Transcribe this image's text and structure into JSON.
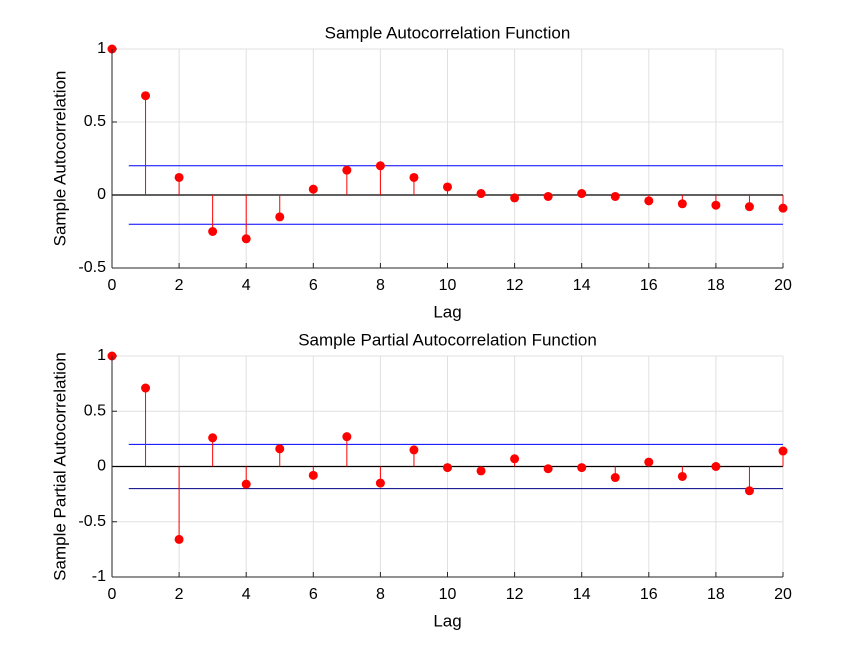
{
  "chart_data": [
    {
      "type": "stem",
      "title": "Sample Autocorrelation Function",
      "xlabel": "Lag",
      "ylabel": "Sample Autocorrelation",
      "x": [
        0,
        1,
        2,
        3,
        4,
        5,
        6,
        7,
        8,
        9,
        10,
        11,
        12,
        13,
        14,
        15,
        16,
        17,
        18,
        19,
        20
      ],
      "values": [
        1,
        0.68,
        0.12,
        -0.25,
        -0.3,
        -0.15,
        0.04,
        0.17,
        0.2,
        0.12,
        0.055,
        0.01,
        -0.02,
        -0.01,
        0.01,
        -0.01,
        -0.04,
        -0.06,
        -0.07,
        -0.08,
        -0.09
      ],
      "color": "#ff0000",
      "bounds": [
        0.2,
        -0.2
      ],
      "bound_colors": [
        "#0000ff",
        "#0000ff"
      ],
      "bounds_x": [
        0.5,
        20
      ],
      "xlim": [
        0,
        20
      ],
      "xticks": [
        0,
        2,
        4,
        6,
        8,
        10,
        12,
        14,
        16,
        18,
        20
      ],
      "ylim": [
        -0.5,
        1
      ],
      "yticks": [
        -0.5,
        0,
        0.5,
        1
      ],
      "grid": true
    },
    {
      "type": "stem",
      "title": "Sample Partial Autocorrelation Function",
      "xlabel": "Lag",
      "ylabel": "Sample Partial Autocorrelation",
      "x": [
        0,
        1,
        2,
        3,
        4,
        5,
        6,
        7,
        8,
        9,
        10,
        11,
        12,
        13,
        14,
        15,
        16,
        17,
        18,
        19,
        20
      ],
      "values": [
        1,
        0.71,
        -0.66,
        0.26,
        -0.16,
        0.16,
        -0.08,
        0.27,
        -0.15,
        0.15,
        -0.01,
        -0.04,
        0.07,
        -0.02,
        -0.01,
        -0.1,
        0.04,
        -0.09,
        0,
        -0.22,
        0.14
      ],
      "color": "#ff0000",
      "bounds": [
        0.2,
        -0.2
      ],
      "bound_colors": [
        "#0000ff",
        "#000080"
      ],
      "bounds_x": [
        0.5,
        20
      ],
      "xlim": [
        0,
        20
      ],
      "xticks": [
        0,
        2,
        4,
        6,
        8,
        10,
        12,
        14,
        16,
        18,
        20
      ],
      "ylim": [
        -1,
        1
      ],
      "yticks": [
        -1,
        -0.5,
        0,
        0.5,
        1
      ],
      "grid": true
    }
  ]
}
